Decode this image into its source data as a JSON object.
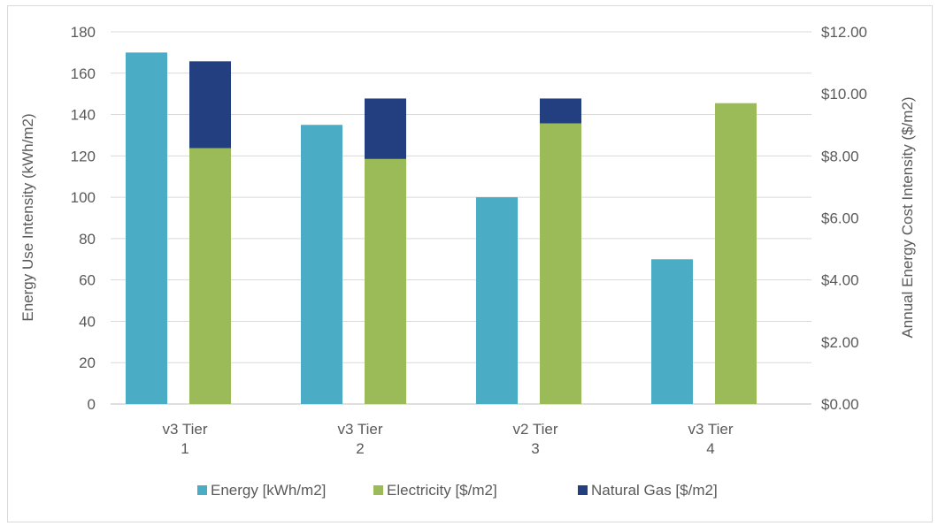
{
  "chart_data": {
    "type": "bar",
    "categories": [
      [
        "v3 Tier",
        "1"
      ],
      [
        "v3 Tier",
        "2"
      ],
      [
        "v2 Tier",
        "3"
      ],
      [
        "v3 Tier",
        "4"
      ]
    ],
    "series": [
      {
        "name": "Energy [kWh/m2]",
        "axis": "left",
        "stack": "energy",
        "color": "#4bacc6",
        "values": [
          170,
          135,
          100,
          70
        ]
      },
      {
        "name": "Electricity [$/m2]",
        "axis": "right",
        "stack": "cost",
        "color": "#9bbb59",
        "values": [
          8.25,
          7.9,
          9.05,
          9.7
        ]
      },
      {
        "name": "Natural Gas [$/m2]",
        "axis": "right",
        "stack": "cost",
        "color": "#243f7f",
        "values": [
          2.8,
          1.95,
          0.8,
          0
        ]
      }
    ],
    "ylabel": "Energy Use Intensity (kWh/m2)",
    "y2label": "Annual Energy Cost Intensity ($/m2)",
    "ylim": [
      0,
      180
    ],
    "y2lim": [
      0,
      12
    ],
    "yticks": [
      "0",
      "20",
      "40",
      "60",
      "80",
      "100",
      "120",
      "140",
      "160",
      "180"
    ],
    "y2ticks": [
      "$0.00",
      "$2.00",
      "$4.00",
      "$6.00",
      "$8.00",
      "$10.00",
      "$12.00"
    ],
    "grid": true,
    "legend_position": "bottom"
  }
}
